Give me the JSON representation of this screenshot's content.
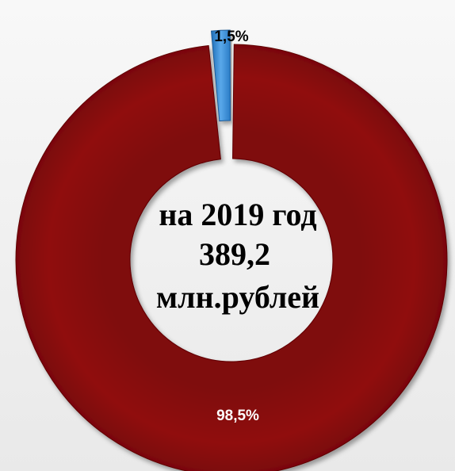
{
  "chart_data": {
    "type": "donut",
    "title": "",
    "center_text": {
      "line1": "на 2019 год",
      "line2": "389,2",
      "line3": "млн.рублей"
    },
    "slices": [
      {
        "value": 98.5,
        "label": "98,5%",
        "color": "#8b0a0e",
        "label_color": "#ffffff"
      },
      {
        "value": 1.5,
        "label": "1,5%",
        "color": "#3b8fd6",
        "label_color": "#000000"
      }
    ],
    "legend": "none"
  }
}
